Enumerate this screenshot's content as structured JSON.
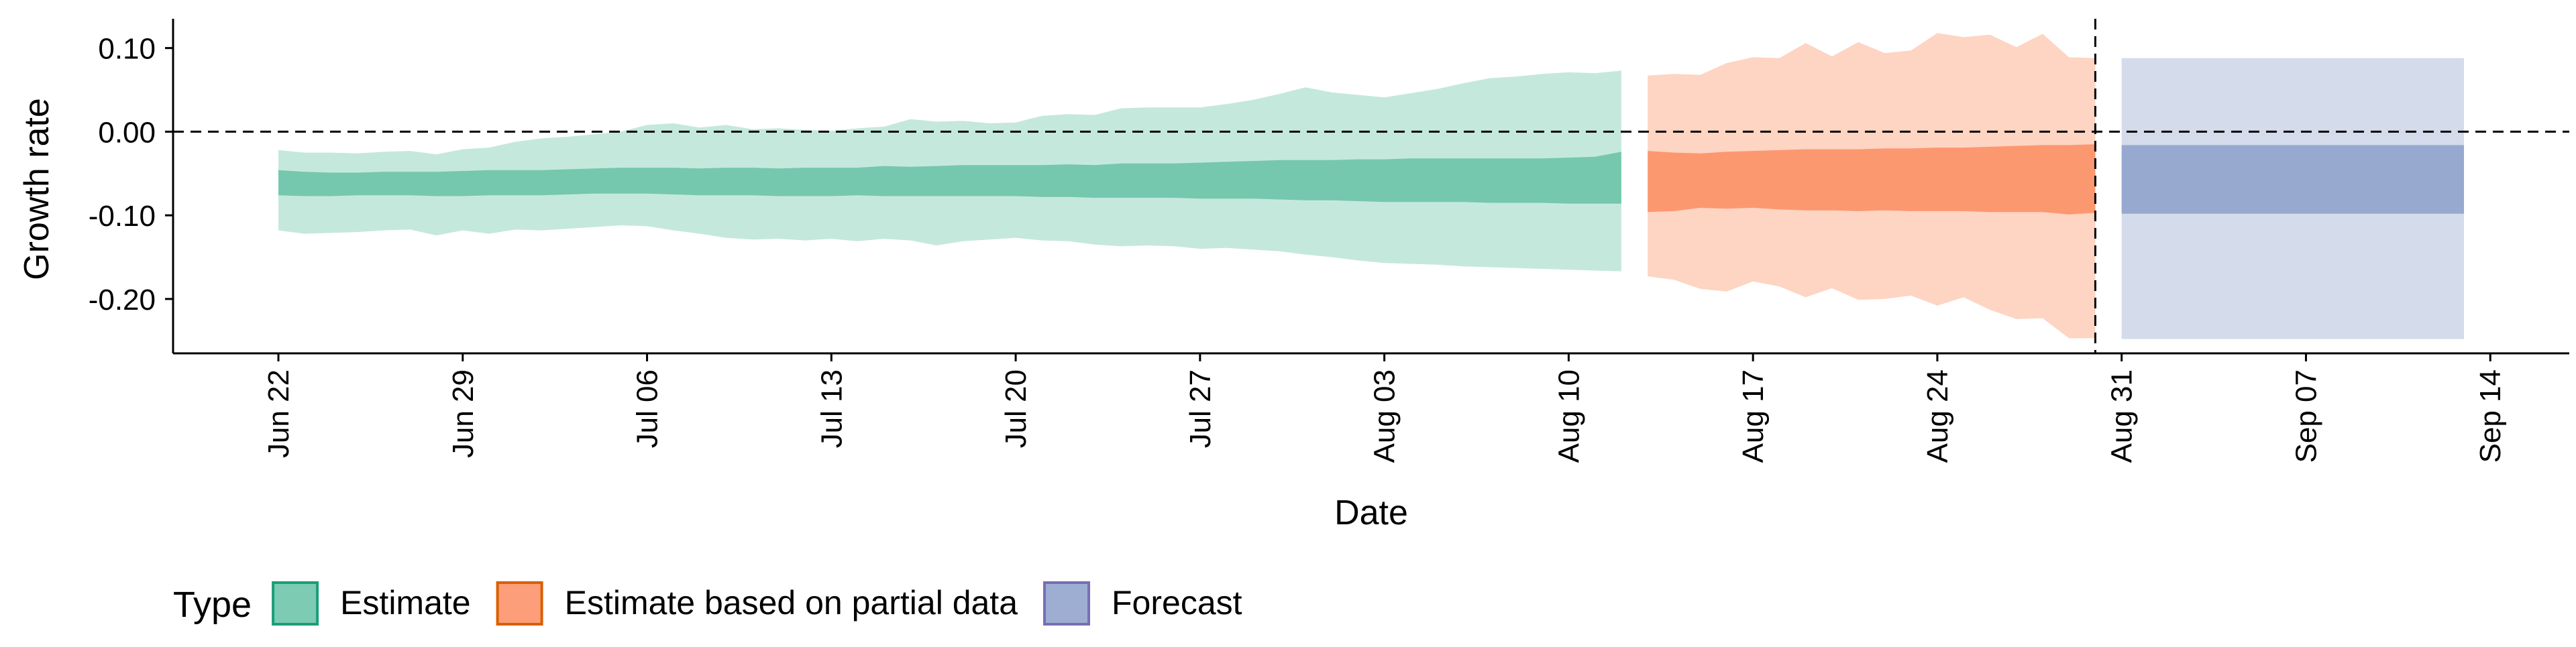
{
  "chart_data": {
    "type": "area",
    "xlabel": "Date",
    "ylabel": "Growth rate",
    "x_ticks": [
      {
        "date": "2020-06-22",
        "label": "Jun 22"
      },
      {
        "date": "2020-06-29",
        "label": "Jun 29"
      },
      {
        "date": "2020-07-06",
        "label": "Jul 06"
      },
      {
        "date": "2020-07-13",
        "label": "Jul 13"
      },
      {
        "date": "2020-07-20",
        "label": "Jul 20"
      },
      {
        "date": "2020-07-27",
        "label": "Jul 27"
      },
      {
        "date": "2020-08-03",
        "label": "Aug 03"
      },
      {
        "date": "2020-08-10",
        "label": "Aug 10"
      },
      {
        "date": "2020-08-17",
        "label": "Aug 17"
      },
      {
        "date": "2020-08-24",
        "label": "Aug 24"
      },
      {
        "date": "2020-08-31",
        "label": "Aug 31"
      },
      {
        "date": "2020-09-07",
        "label": "Sep 07"
      },
      {
        "date": "2020-09-14",
        "label": "Sep 14"
      }
    ],
    "xlim": [
      "2020-06-18",
      "2020-09-17"
    ],
    "y_ticks": [
      {
        "value": 0.1,
        "label": "0.10"
      },
      {
        "value": 0.0,
        "label": "0.00"
      },
      {
        "value": -0.1,
        "label": "-0.10"
      },
      {
        "value": -0.2,
        "label": "-0.20"
      }
    ],
    "ylim": [
      -0.265,
      0.135
    ],
    "hline_y": 0.0,
    "vline_date": "2020-08-30",
    "grid": false,
    "legend": {
      "title": "Type",
      "position": "bottom",
      "entries": [
        "Estimate",
        "Estimate based on partial data",
        "Forecast"
      ]
    },
    "series": [
      {
        "name": "Estimate",
        "fill_color": "#66C2A5",
        "edge_color": "#1B9E77",
        "points": [
          {
            "date": "2020-06-22",
            "outer": [
              -0.118,
              -0.022
            ],
            "inner": [
              -0.076,
              -0.046
            ]
          },
          {
            "date": "2020-06-23",
            "outer": [
              -0.122,
              -0.025
            ],
            "inner": [
              -0.077,
              -0.048
            ]
          },
          {
            "date": "2020-06-24",
            "outer": [
              -0.121,
              -0.025
            ],
            "inner": [
              -0.077,
              -0.049
            ]
          },
          {
            "date": "2020-06-25",
            "outer": [
              -0.12,
              -0.026
            ],
            "inner": [
              -0.076,
              -0.049
            ]
          },
          {
            "date": "2020-06-26",
            "outer": [
              -0.118,
              -0.024
            ],
            "inner": [
              -0.076,
              -0.048
            ]
          },
          {
            "date": "2020-06-27",
            "outer": [
              -0.117,
              -0.023
            ],
            "inner": [
              -0.076,
              -0.048
            ]
          },
          {
            "date": "2020-06-28",
            "outer": [
              -0.124,
              -0.027
            ],
            "inner": [
              -0.077,
              -0.048
            ]
          },
          {
            "date": "2020-06-29",
            "outer": [
              -0.118,
              -0.021
            ],
            "inner": [
              -0.077,
              -0.047
            ]
          },
          {
            "date": "2020-06-30",
            "outer": [
              -0.122,
              -0.019
            ],
            "inner": [
              -0.076,
              -0.046
            ]
          },
          {
            "date": "2020-07-01",
            "outer": [
              -0.117,
              -0.012
            ],
            "inner": [
              -0.076,
              -0.046
            ]
          },
          {
            "date": "2020-07-02",
            "outer": [
              -0.118,
              -0.008
            ],
            "inner": [
              -0.076,
              -0.046
            ]
          },
          {
            "date": "2020-07-03",
            "outer": [
              -0.116,
              -0.006
            ],
            "inner": [
              -0.075,
              -0.045
            ]
          },
          {
            "date": "2020-07-04",
            "outer": [
              -0.114,
              -0.003
            ],
            "inner": [
              -0.074,
              -0.044
            ]
          },
          {
            "date": "2020-07-05",
            "outer": [
              -0.112,
              0.0
            ],
            "inner": [
              -0.074,
              -0.043
            ]
          },
          {
            "date": "2020-07-06",
            "outer": [
              -0.113,
              0.008
            ],
            "inner": [
              -0.074,
              -0.043
            ]
          },
          {
            "date": "2020-07-07",
            "outer": [
              -0.118,
              0.01
            ],
            "inner": [
              -0.075,
              -0.043
            ]
          },
          {
            "date": "2020-07-08",
            "outer": [
              -0.122,
              0.005
            ],
            "inner": [
              -0.076,
              -0.044
            ]
          },
          {
            "date": "2020-07-09",
            "outer": [
              -0.127,
              0.008
            ],
            "inner": [
              -0.076,
              -0.043
            ]
          },
          {
            "date": "2020-07-10",
            "outer": [
              -0.129,
              0.003
            ],
            "inner": [
              -0.076,
              -0.043
            ]
          },
          {
            "date": "2020-07-11",
            "outer": [
              -0.128,
              0.004
            ],
            "inner": [
              -0.077,
              -0.044
            ]
          },
          {
            "date": "2020-07-12",
            "outer": [
              -0.13,
              0.002
            ],
            "inner": [
              -0.077,
              -0.043
            ]
          },
          {
            "date": "2020-07-13",
            "outer": [
              -0.128,
              0.001
            ],
            "inner": [
              -0.077,
              -0.043
            ]
          },
          {
            "date": "2020-07-14",
            "outer": [
              -0.131,
              0.004
            ],
            "inner": [
              -0.076,
              -0.043
            ]
          },
          {
            "date": "2020-07-15",
            "outer": [
              -0.128,
              0.006
            ],
            "inner": [
              -0.077,
              -0.041
            ]
          },
          {
            "date": "2020-07-16",
            "outer": [
              -0.13,
              0.015
            ],
            "inner": [
              -0.077,
              -0.042
            ]
          },
          {
            "date": "2020-07-17",
            "outer": [
              -0.136,
              0.012
            ],
            "inner": [
              -0.077,
              -0.041
            ]
          },
          {
            "date": "2020-07-18",
            "outer": [
              -0.131,
              0.013
            ],
            "inner": [
              -0.077,
              -0.04
            ]
          },
          {
            "date": "2020-07-19",
            "outer": [
              -0.129,
              0.01
            ],
            "inner": [
              -0.077,
              -0.04
            ]
          },
          {
            "date": "2020-07-20",
            "outer": [
              -0.127,
              0.011
            ],
            "inner": [
              -0.077,
              -0.04
            ]
          },
          {
            "date": "2020-07-21",
            "outer": [
              -0.13,
              0.019
            ],
            "inner": [
              -0.078,
              -0.04
            ]
          },
          {
            "date": "2020-07-22",
            "outer": [
              -0.131,
              0.021
            ],
            "inner": [
              -0.078,
              -0.039
            ]
          },
          {
            "date": "2020-07-23",
            "outer": [
              -0.135,
              0.02
            ],
            "inner": [
              -0.079,
              -0.04
            ]
          },
          {
            "date": "2020-07-24",
            "outer": [
              -0.137,
              0.028
            ],
            "inner": [
              -0.079,
              -0.038
            ]
          },
          {
            "date": "2020-07-25",
            "outer": [
              -0.136,
              0.029
            ],
            "inner": [
              -0.079,
              -0.038
            ]
          },
          {
            "date": "2020-07-26",
            "outer": [
              -0.137,
              0.029
            ],
            "inner": [
              -0.079,
              -0.038
            ]
          },
          {
            "date": "2020-07-27",
            "outer": [
              -0.14,
              0.029
            ],
            "inner": [
              -0.08,
              -0.037
            ]
          },
          {
            "date": "2020-07-28",
            "outer": [
              -0.139,
              0.033
            ],
            "inner": [
              -0.08,
              -0.036
            ]
          },
          {
            "date": "2020-07-29",
            "outer": [
              -0.141,
              0.038
            ],
            "inner": [
              -0.08,
              -0.035
            ]
          },
          {
            "date": "2020-07-30",
            "outer": [
              -0.143,
              0.045
            ],
            "inner": [
              -0.081,
              -0.034
            ]
          },
          {
            "date": "2020-07-31",
            "outer": [
              -0.147,
              0.053
            ],
            "inner": [
              -0.082,
              -0.034
            ]
          },
          {
            "date": "2020-08-01",
            "outer": [
              -0.15,
              0.047
            ],
            "inner": [
              -0.082,
              -0.034
            ]
          },
          {
            "date": "2020-08-02",
            "outer": [
              -0.154,
              0.044
            ],
            "inner": [
              -0.083,
              -0.033
            ]
          },
          {
            "date": "2020-08-03",
            "outer": [
              -0.157,
              0.041
            ],
            "inner": [
              -0.084,
              -0.033
            ]
          },
          {
            "date": "2020-08-04",
            "outer": [
              -0.158,
              0.046
            ],
            "inner": [
              -0.084,
              -0.032
            ]
          },
          {
            "date": "2020-08-05",
            "outer": [
              -0.159,
              0.051
            ],
            "inner": [
              -0.084,
              -0.032
            ]
          },
          {
            "date": "2020-08-06",
            "outer": [
              -0.161,
              0.058
            ],
            "inner": [
              -0.084,
              -0.032
            ]
          },
          {
            "date": "2020-08-07",
            "outer": [
              -0.162,
              0.064
            ],
            "inner": [
              -0.085,
              -0.032
            ]
          },
          {
            "date": "2020-08-08",
            "outer": [
              -0.163,
              0.066
            ],
            "inner": [
              -0.085,
              -0.032
            ]
          },
          {
            "date": "2020-08-09",
            "outer": [
              -0.164,
              0.069
            ],
            "inner": [
              -0.085,
              -0.032
            ]
          },
          {
            "date": "2020-08-10",
            "outer": [
              -0.165,
              0.071
            ],
            "inner": [
              -0.086,
              -0.031
            ]
          },
          {
            "date": "2020-08-11",
            "outer": [
              -0.166,
              0.07
            ],
            "inner": [
              -0.086,
              -0.03
            ]
          },
          {
            "date": "2020-08-12",
            "outer": [
              -0.167,
              0.073
            ],
            "inner": [
              -0.086,
              -0.024
            ]
          }
        ]
      },
      {
        "name": "Estimate based on partial data",
        "fill_color": "#FC8D62",
        "edge_color": "#D95F02",
        "points": [
          {
            "date": "2020-08-13",
            "outer": [
              -0.173,
              0.067
            ],
            "inner": [
              -0.096,
              -0.023
            ]
          },
          {
            "date": "2020-08-14",
            "outer": [
              -0.177,
              0.069
            ],
            "inner": [
              -0.095,
              -0.025
            ]
          },
          {
            "date": "2020-08-15",
            "outer": [
              -0.188,
              0.068
            ],
            "inner": [
              -0.091,
              -0.026
            ]
          },
          {
            "date": "2020-08-16",
            "outer": [
              -0.191,
              0.082
            ],
            "inner": [
              -0.092,
              -0.024
            ]
          },
          {
            "date": "2020-08-17",
            "outer": [
              -0.179,
              0.089
            ],
            "inner": [
              -0.091,
              -0.023
            ]
          },
          {
            "date": "2020-08-18",
            "outer": [
              -0.185,
              0.088
            ],
            "inner": [
              -0.093,
              -0.022
            ]
          },
          {
            "date": "2020-08-19",
            "outer": [
              -0.198,
              0.106
            ],
            "inner": [
              -0.094,
              -0.021
            ]
          },
          {
            "date": "2020-08-20",
            "outer": [
              -0.187,
              0.09
            ],
            "inner": [
              -0.094,
              -0.021
            ]
          },
          {
            "date": "2020-08-21",
            "outer": [
              -0.201,
              0.107
            ],
            "inner": [
              -0.095,
              -0.021
            ]
          },
          {
            "date": "2020-08-22",
            "outer": [
              -0.2,
              0.094
            ],
            "inner": [
              -0.094,
              -0.02
            ]
          },
          {
            "date": "2020-08-23",
            "outer": [
              -0.196,
              0.097
            ],
            "inner": [
              -0.095,
              -0.02
            ]
          },
          {
            "date": "2020-08-24",
            "outer": [
              -0.208,
              0.118
            ],
            "inner": [
              -0.095,
              -0.019
            ]
          },
          {
            "date": "2020-08-25",
            "outer": [
              -0.198,
              0.113
            ],
            "inner": [
              -0.095,
              -0.019
            ]
          },
          {
            "date": "2020-08-26",
            "outer": [
              -0.213,
              0.116
            ],
            "inner": [
              -0.096,
              -0.018
            ]
          },
          {
            "date": "2020-08-27",
            "outer": [
              -0.224,
              0.101
            ],
            "inner": [
              -0.096,
              -0.017
            ]
          },
          {
            "date": "2020-08-28",
            "outer": [
              -0.223,
              0.117
            ],
            "inner": [
              -0.096,
              -0.016
            ]
          },
          {
            "date": "2020-08-29",
            "outer": [
              -0.247,
              0.089
            ],
            "inner": [
              -0.099,
              -0.016
            ]
          },
          {
            "date": "2020-08-30",
            "outer": [
              -0.247,
              0.088
            ],
            "inner": [
              -0.097,
              -0.015
            ]
          }
        ]
      },
      {
        "name": "Forecast",
        "fill_color": "#8DA0CB",
        "edge_color": "#7570B3",
        "points": [
          {
            "date": "2020-08-31",
            "outer": [
              -0.248,
              0.088
            ],
            "inner": [
              -0.098,
              -0.016
            ]
          },
          {
            "date": "2020-09-13",
            "outer": [
              -0.248,
              0.088
            ],
            "inner": [
              -0.098,
              -0.016
            ]
          }
        ]
      }
    ]
  }
}
